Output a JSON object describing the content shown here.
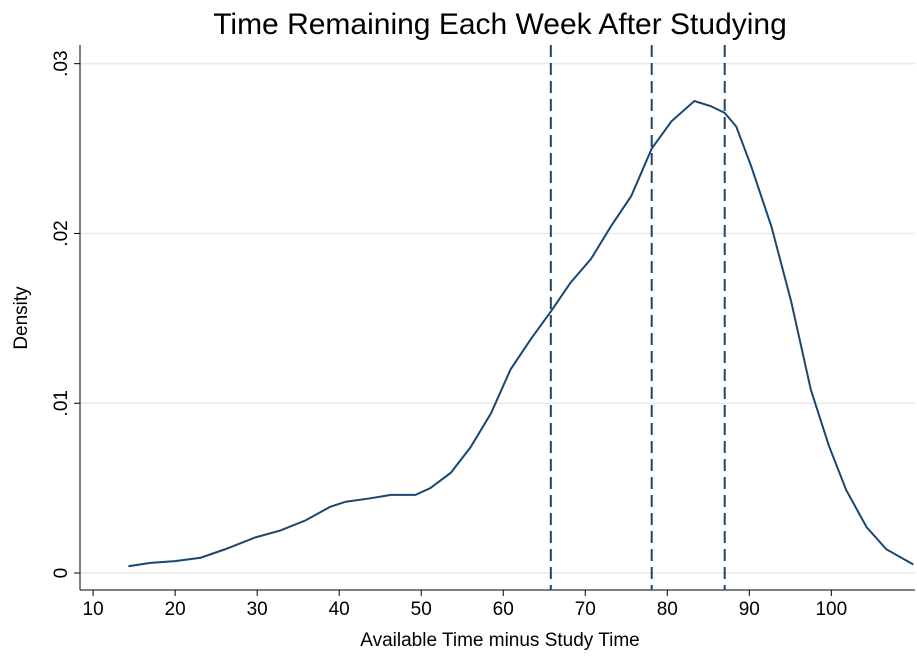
{
  "chart_data": {
    "type": "line",
    "title": "Time Remaining Each Week After Studying",
    "x_label": "Available Time minus Study Time",
    "y_label": "Density",
    "x": [
      14.3,
      17.0,
      20,
      23.1,
      26.1,
      29.8,
      32.8,
      35.9,
      38.9,
      40.8,
      43.8,
      46.3,
      49.3,
      51.1,
      53.6,
      56.0,
      58.5,
      60.9,
      63.4,
      65.8,
      68.2,
      70.7,
      73.1,
      75.6,
      78.1,
      80.5,
      83.3,
      85.3,
      87.0,
      88.4,
      90.2,
      92.7,
      95.1,
      97.5,
      99.7,
      101.8,
      104.3,
      106.7,
      110
    ],
    "series": [
      {
        "name": "Density",
        "color": "#1a476f",
        "values": [
          0.0004,
          0.0006,
          0.0007,
          0.0009,
          0.0014,
          0.0021,
          0.0025,
          0.0031,
          0.0039,
          0.0042,
          0.0044,
          0.0046,
          0.0046,
          0.005,
          0.0059,
          0.0074,
          0.0094,
          0.012,
          0.0138,
          0.0154,
          0.0171,
          0.0185,
          0.0204,
          0.0222,
          0.025,
          0.0266,
          0.0278,
          0.0275,
          0.0271,
          0.0263,
          0.024,
          0.0204,
          0.016,
          0.0108,
          0.0075,
          0.0049,
          0.0027,
          0.0014,
          0.0005
        ]
      }
    ],
    "xlines": [
      65.8,
      78.1,
      87.0
    ],
    "xlim": [
      8.4,
      110.2
    ],
    "ylim": [
      -0.001,
      0.0311
    ],
    "xticks": [
      10,
      20,
      30,
      40,
      50,
      60,
      70,
      80,
      90,
      100
    ],
    "yticks": [
      0,
      {
        "value": 0.01,
        "label": ".01"
      },
      {
        "value": 0.02,
        "label": ".02"
      },
      {
        "value": 0.03,
        "label": ".03"
      }
    ],
    "grid": true
  }
}
